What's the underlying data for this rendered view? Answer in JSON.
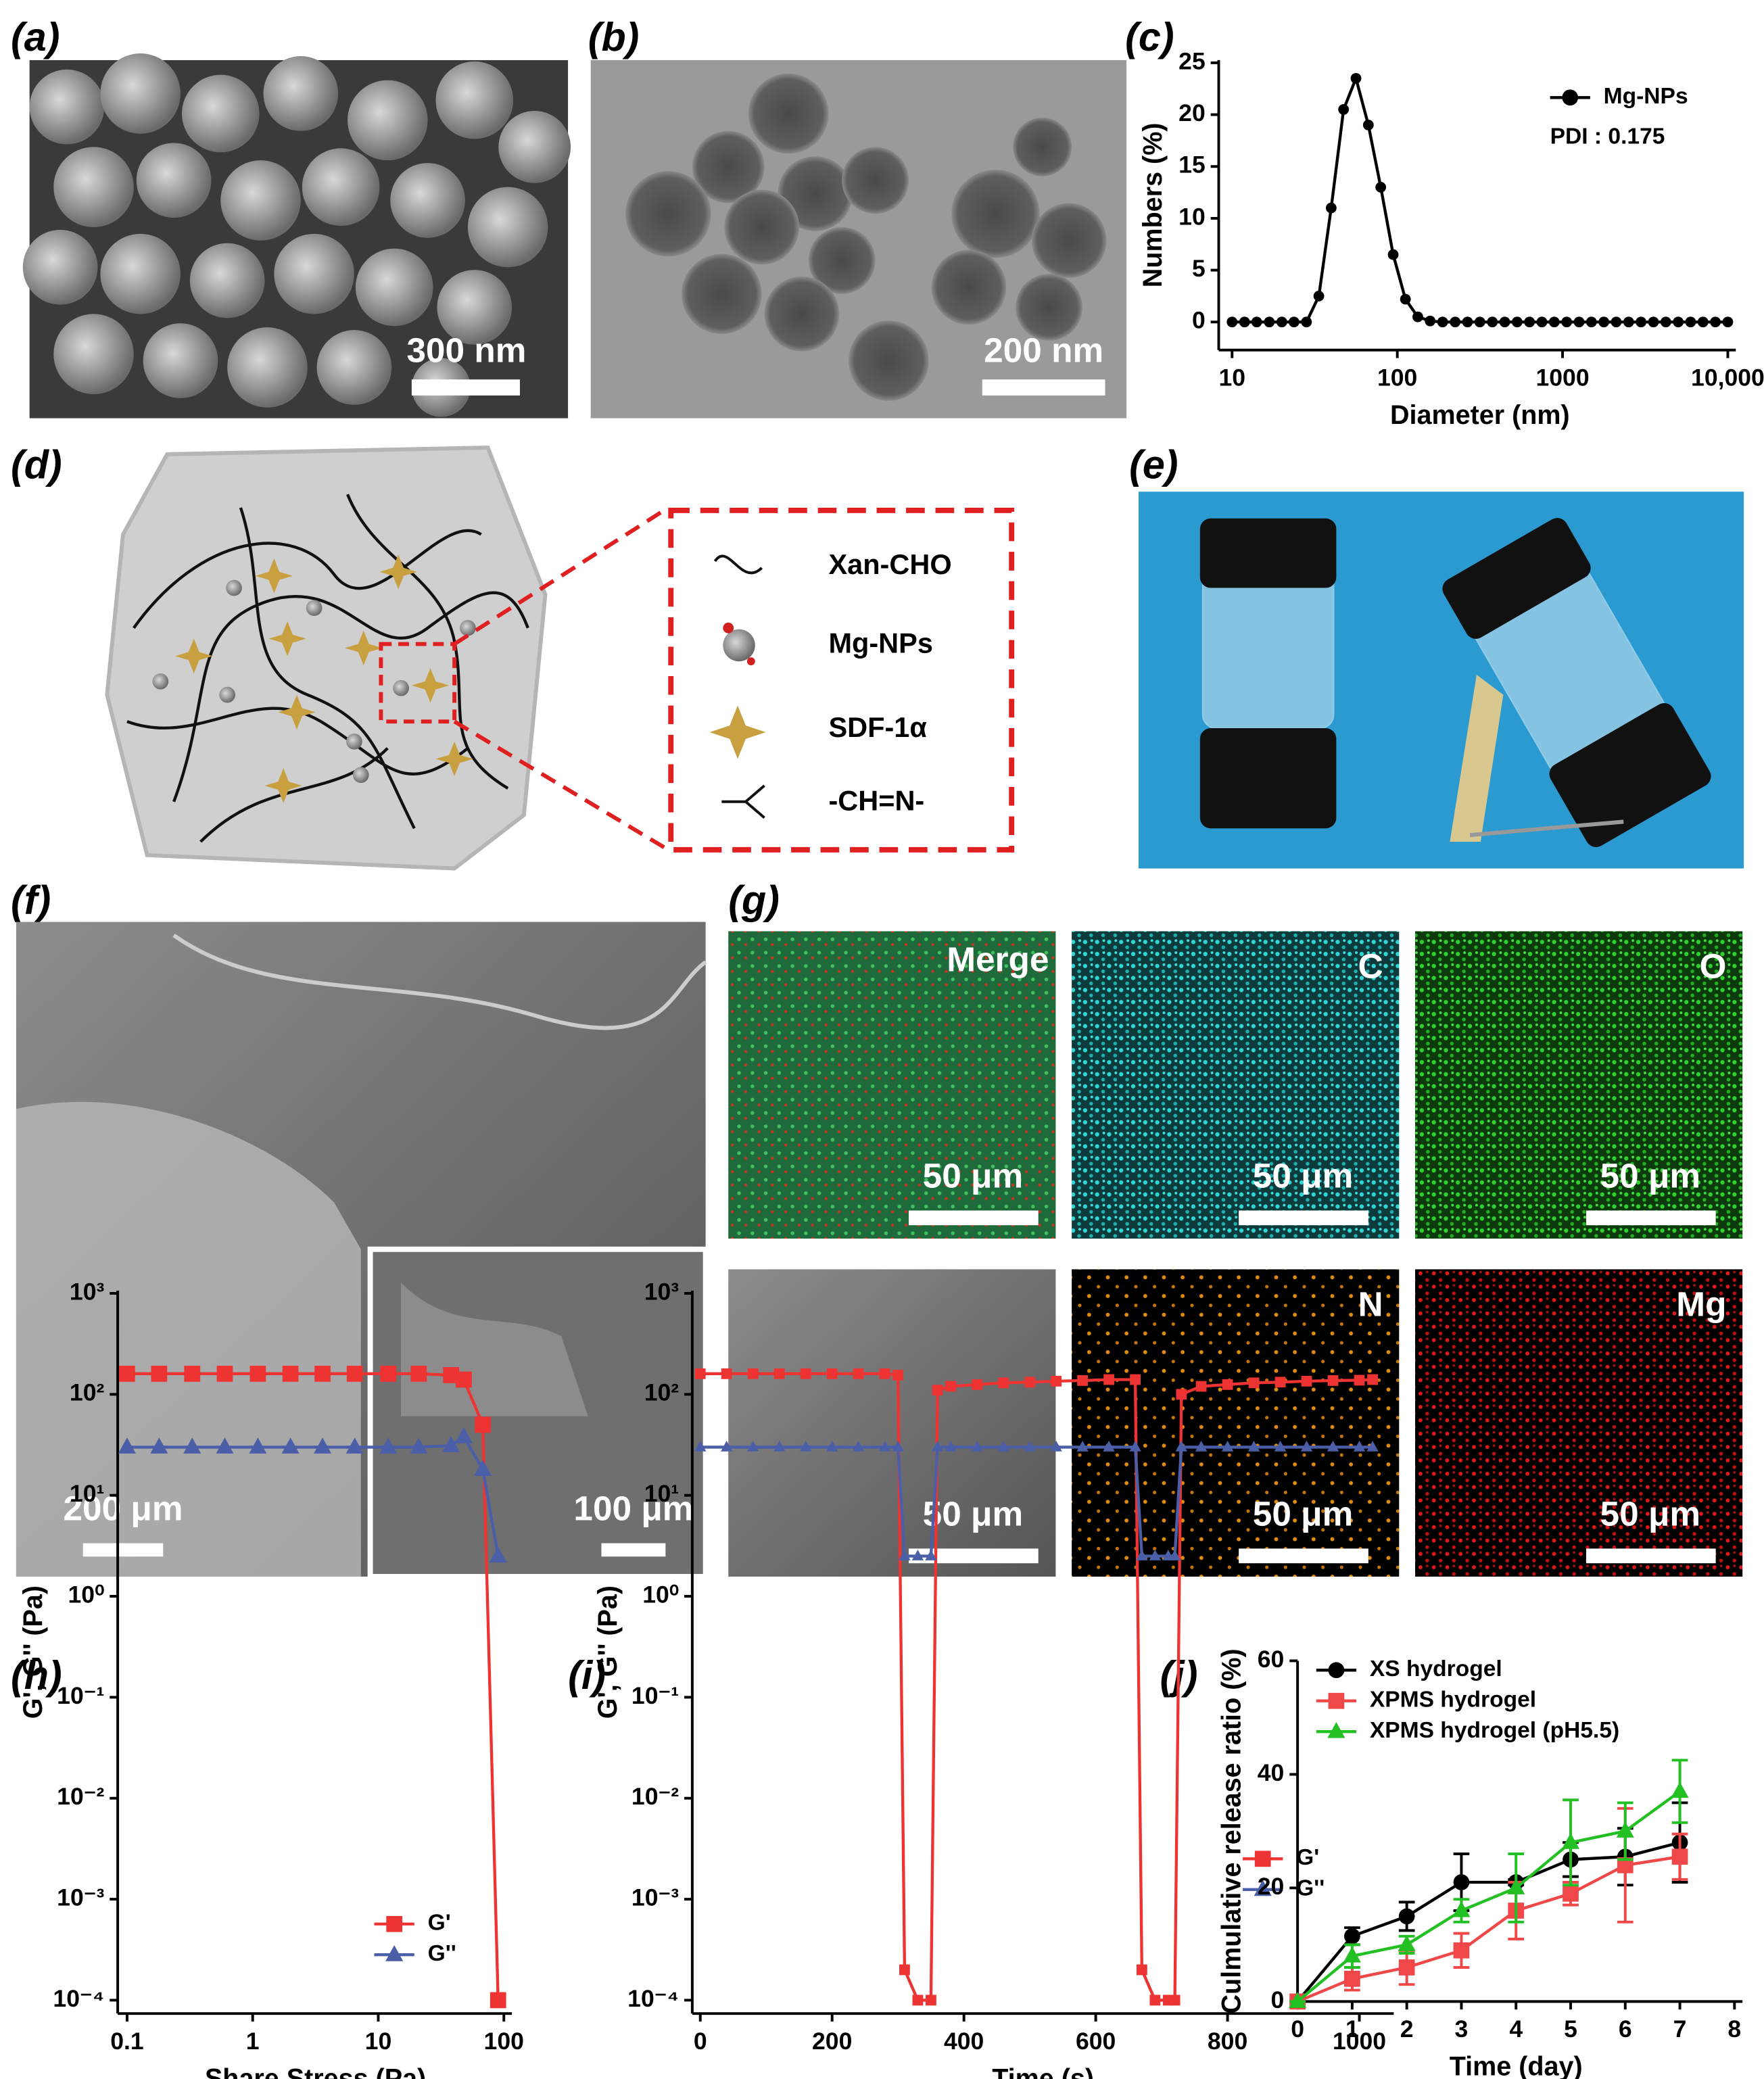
{
  "panel_labels": [
    "(a)",
    "(b)",
    "(c)",
    "(d)",
    "(e)",
    "(f)",
    "(g)",
    "(h)",
    "(i)",
    "(j)"
  ],
  "images": {
    "a_scale": "300 nm",
    "b_scale": "200 nm",
    "f_scale": "200 μm",
    "f_inset_scale": "100 μm"
  },
  "mapping": {
    "tiles": [
      {
        "label": "Merge",
        "scale": "50 μm"
      },
      {
        "label": "C",
        "scale": "50 μm"
      },
      {
        "label": "O",
        "scale": "50 μm"
      },
      {
        "scale": "50 μm"
      },
      {
        "label": "N",
        "scale": "50 μm"
      },
      {
        "label": "Mg",
        "scale": "50 μm"
      }
    ]
  },
  "schematic": {
    "legend": [
      "Xan-CHO",
      "Mg-NPs",
      "SDF-1α",
      "-CH=N-"
    ]
  },
  "chart_data": [
    {
      "type": "line",
      "xlabel": "Diameter (nm)",
      "ylabel": "Numbers (%)",
      "annotation": "PDI : 0.175",
      "xscale": "log",
      "x": [
        10,
        11.9,
        14.1,
        16.8,
        20,
        23.7,
        28.2,
        33.5,
        39.8,
        47.3,
        56.2,
        66.8,
        79.4,
        94.4,
        112,
        133,
        158,
        188,
        224,
        266,
        316,
        376,
        447,
        531,
        631,
        750,
        891,
        1059,
        1259,
        1496,
        1778,
        2113,
        2512,
        2985,
        3548,
        4217,
        5012,
        5957,
        7079,
        8414,
        10000
      ],
      "series": [
        {
          "name": "Mg-NPs",
          "color": "#000000",
          "marker": "circle",
          "values": [
            0,
            0,
            0,
            0,
            0,
            0,
            0,
            2.5,
            11,
            20.5,
            23.5,
            19,
            13,
            6.5,
            2.2,
            0.5,
            0.1,
            0,
            0,
            0,
            0,
            0,
            0,
            0,
            0,
            0,
            0,
            0,
            0,
            0,
            0,
            0,
            0,
            0,
            0,
            0,
            0,
            0,
            0,
            0,
            0
          ]
        }
      ],
      "xlim": [
        10,
        10000
      ],
      "xticks": [
        10,
        100,
        1000,
        {
          "value": 10000,
          "label": "10,000"
        }
      ],
      "ylim": [
        0,
        25
      ],
      "yticks": [
        0,
        5,
        10,
        15,
        20,
        25
      ],
      "legend": "upper right"
    },
    {
      "type": "line",
      "xlabel": "Share Stress (Pa)",
      "ylabel": "G', G'' (Pa)",
      "xscale": "log",
      "yscale": "log",
      "x": [
        0.1,
        0.18,
        0.33,
        0.6,
        1.1,
        2,
        3.6,
        6.5,
        12,
        21,
        38,
        48,
        68,
        90
      ],
      "series": [
        {
          "name": "G'",
          "color": "#ee3333",
          "marker": "square",
          "values": [
            160,
            160,
            160,
            160,
            160,
            160,
            160,
            160,
            160,
            160,
            155,
            140,
            50,
            0.0001
          ]
        },
        {
          "name": "G''",
          "color": "#4a5fa8",
          "marker": "triangle",
          "values": [
            30,
            30,
            30,
            30,
            30,
            30,
            30,
            30,
            30,
            30,
            31,
            38,
            18,
            2.5
          ]
        }
      ],
      "xlim": [
        0.1,
        100
      ],
      "xticks": [
        0.1,
        1,
        10,
        100
      ],
      "ylim": [
        0.0001,
        1000
      ],
      "yticks": [
        {
          "value": 1000,
          "label": "10³"
        },
        {
          "value": 100,
          "label": "10²"
        },
        {
          "value": 10,
          "label": "10¹"
        },
        {
          "value": 1,
          "label": "10⁰"
        },
        {
          "value": 0.1,
          "label": "10⁻¹"
        },
        {
          "value": 0.01,
          "label": "10⁻²"
        },
        {
          "value": 0.001,
          "label": "10⁻³"
        },
        {
          "value": 0.0001,
          "label": "10⁻⁴"
        }
      ],
      "legend": "lower right"
    },
    {
      "type": "line",
      "xlabel": "Time (s)",
      "ylabel": "G', G'' (Pa)",
      "yscale": "log",
      "x": [
        0,
        40,
        80,
        120,
        160,
        200,
        240,
        280,
        300,
        310,
        330,
        350,
        360,
        380,
        420,
        460,
        500,
        540,
        580,
        620,
        660,
        670,
        690,
        710,
        720,
        730,
        760,
        800,
        840,
        880,
        920,
        960,
        1000,
        1020
      ],
      "series": [
        {
          "name": "G'",
          "color": "#ee3333",
          "marker": "square",
          "values": [
            160,
            160,
            160,
            160,
            160,
            160,
            160,
            160,
            155,
            0.0002,
            0.0001,
            0.0001,
            110,
            120,
            125,
            130,
            132,
            135,
            137,
            140,
            140,
            0.0002,
            0.0001,
            0.0001,
            0.0001,
            100,
            120,
            125,
            130,
            132,
            135,
            137,
            138,
            140
          ]
        },
        {
          "name": "G''",
          "color": "#4a5fa8",
          "marker": "triangle",
          "values": [
            30,
            30,
            30,
            30,
            30,
            30,
            30,
            30,
            30,
            2.5,
            2.5,
            2.5,
            30,
            30,
            30,
            30,
            30,
            30,
            30,
            30,
            30,
            2.5,
            2.5,
            2.5,
            2.5,
            30,
            30,
            30,
            30,
            30,
            30,
            30,
            30,
            30
          ]
        }
      ],
      "xlim": [
        0,
        1040
      ],
      "xticks": [
        0,
        200,
        400,
        600,
        800,
        1000
      ],
      "ylim": [
        0.0001,
        1000
      ],
      "yticks": [
        {
          "value": 1000,
          "label": "10³"
        },
        {
          "value": 100,
          "label": "10²"
        },
        {
          "value": 10,
          "label": "10¹"
        },
        {
          "value": 1,
          "label": "10⁰"
        },
        {
          "value": 0.1,
          "label": "10⁻¹"
        },
        {
          "value": 0.01,
          "label": "10⁻²"
        },
        {
          "value": 0.001,
          "label": "10⁻³"
        },
        {
          "value": 0.0001,
          "label": "10⁻⁴"
        }
      ],
      "legend": "center right"
    },
    {
      "type": "line",
      "xlabel": "Time (day)",
      "ylabel": "Culmulative release ratio (%)",
      "x": [
        0,
        1,
        2,
        3,
        4,
        5,
        6,
        7
      ],
      "series": [
        {
          "name": "XS hydrogel",
          "color": "#000000",
          "marker": "circle",
          "values": [
            0,
            11.5,
            15,
            21,
            21,
            25,
            25.5,
            28
          ],
          "errors": [
            0,
            1.5,
            2.5,
            5,
            0.5,
            3,
            5,
            7
          ]
        },
        {
          "name": "XPMS hydrogel",
          "color": "#f04848",
          "marker": "square",
          "values": [
            0,
            4,
            6,
            9,
            16,
            19,
            24,
            25.5
          ],
          "errors": [
            0,
            2,
            3,
            3,
            5,
            2,
            10,
            4
          ]
        },
        {
          "name": "XPMS hydrogel (pH5.5)",
          "color": "#22c022",
          "marker": "triangle",
          "values": [
            0,
            8,
            10,
            16,
            20,
            28,
            30,
            37
          ],
          "errors": [
            0,
            2,
            1.5,
            2,
            6,
            7.5,
            5,
            5.5
          ]
        }
      ],
      "xlim": [
        0,
        8
      ],
      "xticks": [
        0,
        1,
        2,
        3,
        4,
        5,
        6,
        7,
        8
      ],
      "ylim": [
        0,
        60
      ],
      "yticks": [
        0,
        20,
        40,
        60
      ],
      "legend": "upper left"
    }
  ]
}
